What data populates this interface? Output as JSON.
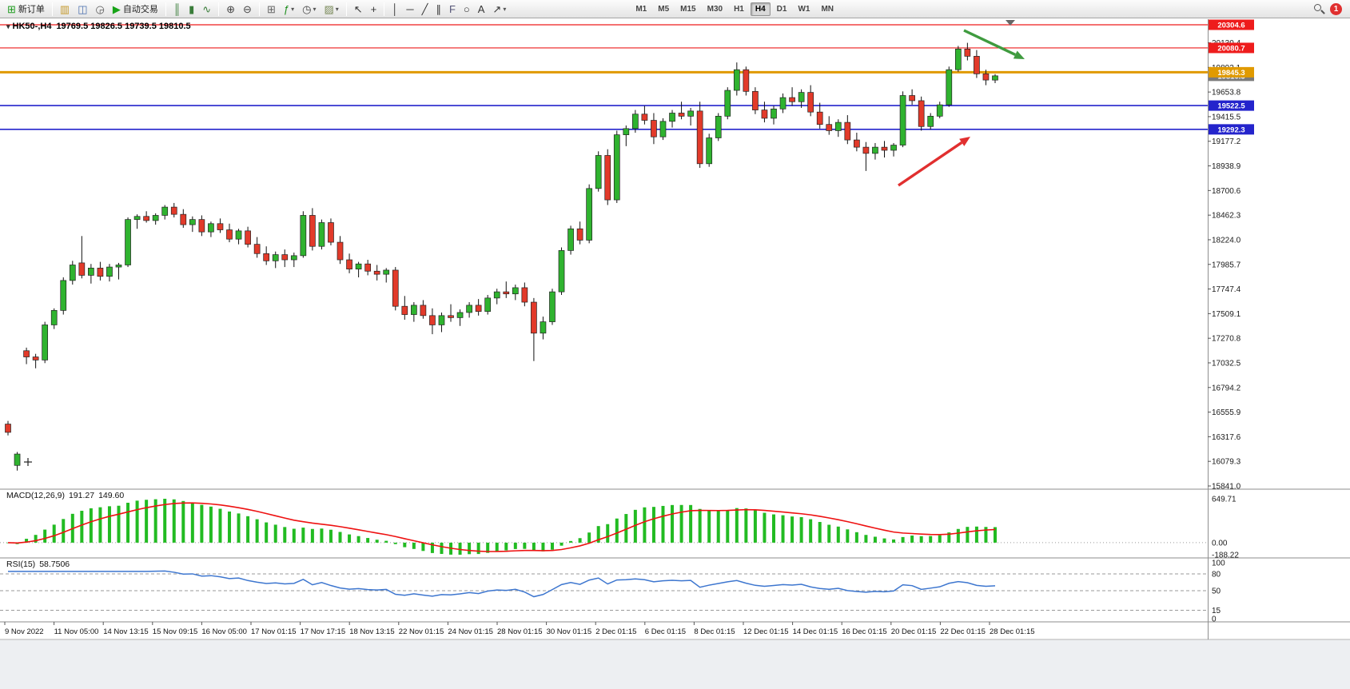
{
  "toolbar": {
    "caret_glyph": "▾",
    "notification_count": "1",
    "items": [
      {
        "name": "new-order-button",
        "kind": "labeled",
        "label": "新订单",
        "glyph": "⊞",
        "glyph_color": "#1f9c1f"
      },
      {
        "kind": "divider"
      },
      {
        "name": "new-chart-button",
        "glyph": "▥",
        "glyph_color": "#c59a2e"
      },
      {
        "name": "profiles-button",
        "glyph": "◫",
        "glyph_color": "#4a6fae"
      },
      {
        "name": "market-watch-button",
        "glyph": "◶",
        "glyph_color": "#5a5a5a"
      },
      {
        "name": "auto-trading-button",
        "kind": "labeled",
        "label": "自动交易",
        "glyph": "▶",
        "glyph_color": "#17a317"
      },
      {
        "kind": "divider"
      },
      {
        "name": "bar-chart-type-button",
        "glyph": "║",
        "glyph_color": "#3a7d3a"
      },
      {
        "name": "candlestick-type-button",
        "glyph": "▮",
        "glyph_color": "#3a7d3a"
      },
      {
        "name": "line-chart-type-button",
        "glyph": "∿",
        "glyph_color": "#3a7d3a"
      },
      {
        "kind": "divider"
      },
      {
        "name": "zoom-in-button",
        "glyph": "⊕",
        "glyph_color": "#444444"
      },
      {
        "name": "zoom-out-button",
        "glyph": "⊖",
        "glyph_color": "#444444"
      },
      {
        "kind": "divider"
      },
      {
        "name": "tile-windows-button",
        "glyph": "⊞",
        "glyph_color": "#666666"
      },
      {
        "name": "indicators-button",
        "glyph": "ƒ",
        "glyph_color": "#1e8e1e",
        "caret": true
      },
      {
        "name": "periods-button",
        "glyph": "◷",
        "glyph_color": "#444444",
        "caret": true
      },
      {
        "name": "templates-button",
        "glyph": "▨",
        "glyph_color": "#7a8a5a",
        "caret": true
      },
      {
        "kind": "divider"
      },
      {
        "name": "cursor-button",
        "glyph": "↖",
        "glyph_color": "#333333"
      },
      {
        "name": "crosshair-button",
        "glyph": "+",
        "glyph_color": "#333333"
      },
      {
        "kind": "divider"
      },
      {
        "name": "vertical-line-button",
        "glyph": "│",
        "glyph_color": "#333333"
      },
      {
        "name": "horizontal-line-button",
        "glyph": "─",
        "glyph_color": "#333333"
      },
      {
        "name": "trendline-button",
        "glyph": "╱",
        "glyph_color": "#333333"
      },
      {
        "name": "channel-button",
        "glyph": "∥",
        "glyph_color": "#333333"
      },
      {
        "name": "fibonacci-button",
        "glyph": "F",
        "glyph_color": "#555577"
      },
      {
        "name": "shapes-button",
        "glyph": "○",
        "glyph_color": "#333333"
      },
      {
        "name": "text-button",
        "glyph": "A",
        "glyph_color": "#333333"
      },
      {
        "name": "arrows-button",
        "glyph": "↗",
        "glyph_color": "#333333",
        "caret": true
      },
      {
        "kind": "spacer"
      }
    ],
    "timeframes": [
      "M1",
      "M5",
      "M15",
      "M30",
      "H1",
      "H4",
      "D1",
      "W1",
      "MN"
    ],
    "active_timeframe": "H4"
  },
  "chart": {
    "collapse_icon": "▾",
    "symbol_period": "HK50-,H4",
    "ohlc_text": "19769.5 19826.5 19739.5 19810.5",
    "colors": {
      "up": "#2fb32f",
      "down": "#e23a2a",
      "body_stroke": "#222222",
      "wick": "#111111",
      "macd_hist": "#22bb22",
      "macd_signal": "#ee1111",
      "rsi_line": "#3d76cf",
      "level_red": "#ee1c1c",
      "level_orange": "#e09a00",
      "level_blue": "#2424cc"
    }
  },
  "chart_data": {
    "type": "candlestick",
    "symbol": "HK50-",
    "timeframe": "H4",
    "current_bar": {
      "open": 19769.5,
      "high": 19826.5,
      "low": 19739.5,
      "close": 19810.5
    },
    "candles": [
      [
        16440,
        16470,
        16330,
        16360
      ],
      [
        16040,
        16170,
        15990,
        16150
      ],
      [
        17150,
        17180,
        17020,
        17090
      ],
      [
        17090,
        17120,
        16980,
        17060
      ],
      [
        17060,
        17430,
        17030,
        17400
      ],
      [
        17400,
        17560,
        17360,
        17540
      ],
      [
        17540,
        17860,
        17500,
        17830
      ],
      [
        17830,
        18020,
        17790,
        17980
      ],
      [
        18000,
        18260,
        17850,
        17880
      ],
      [
        17880,
        17990,
        17800,
        17950
      ],
      [
        17950,
        18010,
        17830,
        17870
      ],
      [
        17870,
        17990,
        17820,
        17960
      ],
      [
        17960,
        18000,
        17840,
        17980
      ],
      [
        17980,
        18440,
        17960,
        18420
      ],
      [
        18420,
        18470,
        18330,
        18450
      ],
      [
        18450,
        18500,
        18390,
        18410
      ],
      [
        18410,
        18480,
        18370,
        18460
      ],
      [
        18460,
        18560,
        18420,
        18540
      ],
      [
        18540,
        18580,
        18440,
        18470
      ],
      [
        18470,
        18520,
        18340,
        18370
      ],
      [
        18370,
        18450,
        18300,
        18420
      ],
      [
        18420,
        18460,
        18260,
        18300
      ],
      [
        18300,
        18400,
        18250,
        18380
      ],
      [
        18380,
        18430,
        18290,
        18320
      ],
      [
        18320,
        18380,
        18200,
        18230
      ],
      [
        18230,
        18330,
        18180,
        18310
      ],
      [
        18310,
        18350,
        18150,
        18180
      ],
      [
        18180,
        18250,
        18050,
        18090
      ],
      [
        18090,
        18160,
        17980,
        18020
      ],
      [
        18020,
        18110,
        17950,
        18080
      ],
      [
        18080,
        18130,
        17960,
        18030
      ],
      [
        18030,
        18100,
        17960,
        18070
      ],
      [
        18070,
        18500,
        18050,
        18460
      ],
      [
        18460,
        18530,
        18120,
        18160
      ],
      [
        18160,
        18420,
        18130,
        18390
      ],
      [
        18390,
        18430,
        18170,
        18200
      ],
      [
        18200,
        18260,
        17990,
        18030
      ],
      [
        18030,
        18090,
        17900,
        17940
      ],
      [
        17940,
        18010,
        17860,
        17990
      ],
      [
        17990,
        18030,
        17880,
        17920
      ],
      [
        17920,
        17980,
        17830,
        17890
      ],
      [
        17890,
        17950,
        17810,
        17930
      ],
      [
        17930,
        17960,
        17540,
        17580
      ],
      [
        17580,
        17680,
        17450,
        17500
      ],
      [
        17500,
        17620,
        17430,
        17590
      ],
      [
        17590,
        17640,
        17460,
        17490
      ],
      [
        17490,
        17560,
        17310,
        17400
      ],
      [
        17400,
        17520,
        17330,
        17490
      ],
      [
        17490,
        17600,
        17430,
        17470
      ],
      [
        17470,
        17550,
        17390,
        17520
      ],
      [
        17520,
        17620,
        17470,
        17590
      ],
      [
        17590,
        17650,
        17490,
        17530
      ],
      [
        17530,
        17690,
        17500,
        17660
      ],
      [
        17660,
        17750,
        17600,
        17720
      ],
      [
        17720,
        17820,
        17660,
        17700
      ],
      [
        17700,
        17790,
        17640,
        17760
      ],
      [
        17760,
        17810,
        17580,
        17620
      ],
      [
        17620,
        17660,
        17050,
        17320
      ],
      [
        17320,
        17480,
        17260,
        17430
      ],
      [
        17430,
        17750,
        17400,
        17720
      ],
      [
        17720,
        18150,
        17690,
        18120
      ],
      [
        18120,
        18360,
        18080,
        18330
      ],
      [
        18330,
        18400,
        18180,
        18220
      ],
      [
        18220,
        18760,
        18190,
        18720
      ],
      [
        18720,
        19080,
        18690,
        19040
      ],
      [
        19040,
        19100,
        18560,
        18610
      ],
      [
        18610,
        19280,
        18580,
        19240
      ],
      [
        19240,
        19330,
        19130,
        19300
      ],
      [
        19300,
        19480,
        19260,
        19440
      ],
      [
        19440,
        19520,
        19340,
        19380
      ],
      [
        19380,
        19450,
        19150,
        19220
      ],
      [
        19220,
        19400,
        19190,
        19370
      ],
      [
        19370,
        19480,
        19310,
        19450
      ],
      [
        19450,
        19560,
        19390,
        19420
      ],
      [
        19420,
        19500,
        19330,
        19470
      ],
      [
        19470,
        19560,
        18920,
        18960
      ],
      [
        18960,
        19250,
        18930,
        19210
      ],
      [
        19210,
        19450,
        19180,
        19420
      ],
      [
        19420,
        19700,
        19390,
        19670
      ],
      [
        19670,
        19940,
        19620,
        19870
      ],
      [
        19870,
        19900,
        19620,
        19660
      ],
      [
        19660,
        19700,
        19440,
        19480
      ],
      [
        19480,
        19560,
        19360,
        19400
      ],
      [
        19400,
        19520,
        19340,
        19490
      ],
      [
        19490,
        19640,
        19450,
        19600
      ],
      [
        19600,
        19700,
        19520,
        19560
      ],
      [
        19560,
        19680,
        19500,
        19650
      ],
      [
        19650,
        19720,
        19420,
        19460
      ],
      [
        19460,
        19550,
        19300,
        19340
      ],
      [
        19340,
        19420,
        19240,
        19280
      ],
      [
        19280,
        19390,
        19220,
        19360
      ],
      [
        19360,
        19430,
        19150,
        19190
      ],
      [
        19190,
        19260,
        19080,
        19120
      ],
      [
        19120,
        19170,
        18890,
        19060
      ],
      [
        19060,
        19160,
        19000,
        19120
      ],
      [
        19120,
        19180,
        19020,
        19090
      ],
      [
        19090,
        19160,
        19030,
        19140
      ],
      [
        19140,
        19660,
        19120,
        19620
      ],
      [
        19620,
        19680,
        19530,
        19570
      ],
      [
        19570,
        19610,
        19280,
        19320
      ],
      [
        19320,
        19450,
        19290,
        19420
      ],
      [
        19420,
        19560,
        19400,
        19530
      ],
      [
        19530,
        19900,
        19510,
        19870
      ],
      [
        19870,
        20100,
        19850,
        20070
      ],
      [
        20070,
        20130,
        19960,
        20000
      ],
      [
        20000,
        20060,
        19790,
        19830
      ],
      [
        19830,
        19870,
        19720,
        19770
      ],
      [
        19769.5,
        19826.5,
        19739.5,
        19810.5
      ]
    ],
    "horizontal_lines": [
      {
        "price": 20304.6,
        "color": "#ee1c1c",
        "width": 1.2
      },
      {
        "price": 20080.7,
        "color": "#ee1c1c",
        "width": 1.2
      },
      {
        "price": 19845.3,
        "color": "#e09a00",
        "width": 3
      },
      {
        "price": 19522.5,
        "color": "#2424cc",
        "width": 1.6
      },
      {
        "price": 19292.3,
        "color": "#2424cc",
        "width": 1.6
      }
    ],
    "price_tags": [
      {
        "price": 20304.6,
        "label": "20304.6",
        "bg": "#ee1c1c"
      },
      {
        "price": 20080.7,
        "label": "20080.7",
        "bg": "#ee1c1c"
      },
      {
        "price": 19810.5,
        "label": "19810.5",
        "bg": "#7a7a7a"
      },
      {
        "price": 19845.3,
        "label": "19845.3",
        "bg": "#e09a00"
      },
      {
        "price": 19522.5,
        "label": "19522.5",
        "bg": "#2424cc"
      },
      {
        "price": 19292.3,
        "label": "19292.3",
        "bg": "#2424cc"
      }
    ],
    "price_ticks": [
      "20130.4",
      "19892.1",
      "19653.8",
      "19415.5",
      "19177.2",
      "18938.9",
      "18700.6",
      "18462.3",
      "18224.0",
      "17985.7",
      "17747.4",
      "17509.1",
      "17270.8",
      "17032.5",
      "16794.2",
      "16555.9",
      "16317.6",
      "16079.3",
      "15841.0"
    ],
    "x_labels": [
      "9 Nov 2022",
      "11 Nov 05:00",
      "14 Nov 13:15",
      "15 Nov 09:15",
      "16 Nov 05:00",
      "17 Nov 01:15",
      "17 Nov 17:15",
      "18 Nov 13:15",
      "22 Nov 01:15",
      "24 Nov 01:15",
      "28 Nov 01:15",
      "30 Nov 01:15",
      "2 Dec 01:15",
      "6 Dec 01:15",
      "8 Dec 01:15",
      "12 Dec 01:15",
      "14 Dec 01:15",
      "16 Dec 01:15",
      "20 Dec 01:15",
      "22 Dec 01:15",
      "28 Dec 01:15"
    ],
    "indicators": [
      {
        "type": "MACD",
        "label": "MACD(12,26,9)",
        "params": [
          12,
          26,
          9
        ],
        "display_values": [
          "191.27",
          "149.60"
        ],
        "axis_labels": [
          "649.71",
          "0.00",
          "-188.22"
        ]
      },
      {
        "type": "RSI",
        "label": "RSI(15)",
        "params": [
          15
        ],
        "display_value": "58.7506",
        "axis_labels": [
          "100",
          "80",
          "50",
          "15",
          "0"
        ],
        "level_lines": [
          80,
          50,
          15
        ]
      }
    ],
    "annotations": [
      {
        "type": "arrow",
        "color": "#3f9b3f",
        "from": [
          1206,
          38
        ],
        "to": [
          1282,
          74
        ]
      },
      {
        "type": "arrow",
        "color": "#e12f2f",
        "from": [
          1124,
          232
        ],
        "to": [
          1214,
          171
        ]
      },
      {
        "type": "cross",
        "at": [
          35,
          578
        ]
      }
    ]
  }
}
